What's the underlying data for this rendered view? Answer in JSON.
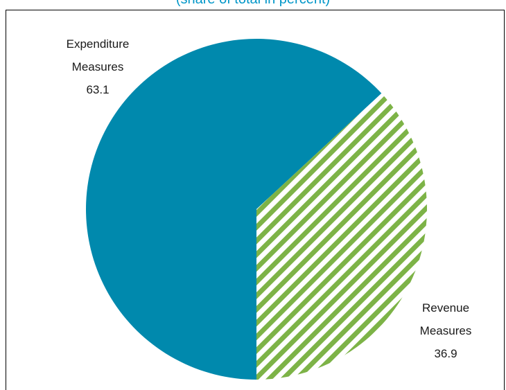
{
  "chart_data": {
    "type": "pie",
    "title": "",
    "subtitle": "(share of total in percent)",
    "slices": [
      {
        "label_line1": "Expenditure",
        "label_line2": "Measures",
        "value": 63.1,
        "value_text": "63.1",
        "color": "#0089ad",
        "pattern": "solid"
      },
      {
        "label_line1": "Revenue",
        "label_line2": "Measures",
        "value": 36.9,
        "value_text": "36.9",
        "color": "#7db347",
        "pattern": "diagonal-stripes"
      }
    ],
    "start_angle_deg": 180,
    "direction": "clockwise",
    "legend": "none",
    "grid": false
  }
}
